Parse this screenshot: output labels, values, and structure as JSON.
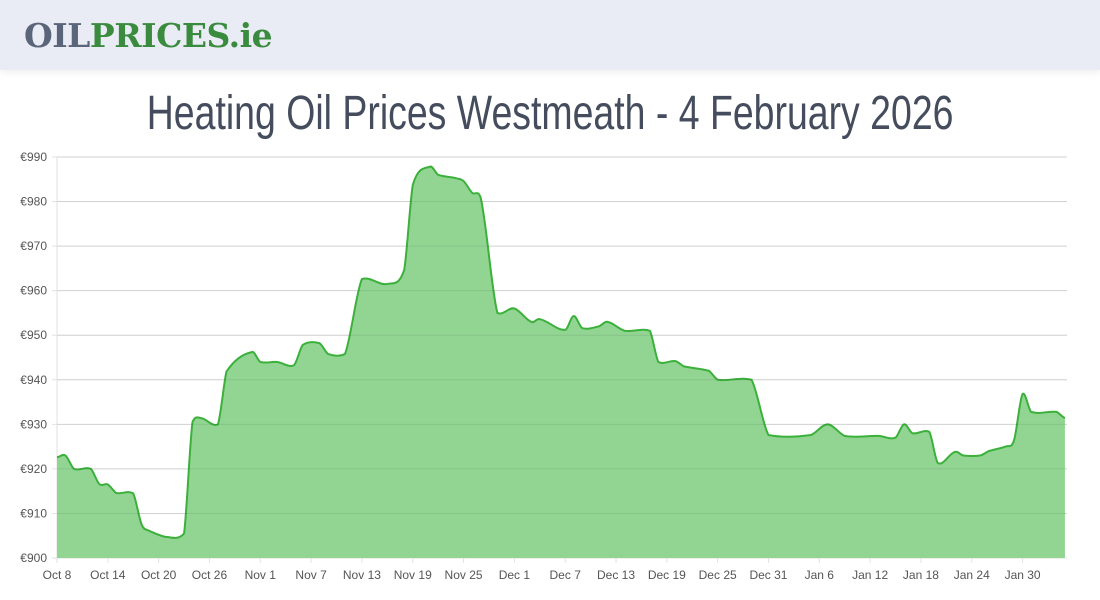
{
  "header": {
    "logo_part1": "OIL",
    "logo_part2": "PRICES.ie"
  },
  "page_title": "Heating Oil Prices Westmeath - 4 February 2026",
  "colors": {
    "line": "#3bb03b",
    "fill": "#92d593",
    "grid": "#e2e2e2",
    "logo_gray": "#5b6579",
    "logo_green": "#3b8b3f"
  },
  "chart_data": {
    "type": "area",
    "title": "",
    "xlabel": "",
    "ylabel": "",
    "ylim": [
      900,
      990
    ],
    "y_ticks": [
      "€900",
      "€910",
      "€920",
      "€930",
      "€940",
      "€950",
      "€960",
      "€970",
      "€980",
      "€990"
    ],
    "x_ticks": [
      "Oct 8",
      "Oct 14",
      "Oct 20",
      "Oct 26",
      "Nov 1",
      "Nov 7",
      "Nov 13",
      "Nov 19",
      "Nov 25",
      "Dec 1",
      "Dec 7",
      "Dec 13",
      "Dec 19",
      "Dec 25",
      "Dec 31",
      "Jan 6",
      "Jan 12",
      "Jan 18",
      "Jan 24",
      "Jan 30"
    ],
    "grid": true,
    "currency": "€",
    "points": [
      [
        "2025-10-08",
        922.6
      ],
      [
        "2025-10-09",
        923
      ],
      [
        "2025-10-10",
        920
      ],
      [
        "2025-10-12",
        920
      ],
      [
        "2025-10-13",
        916.6
      ],
      [
        "2025-10-14",
        916.5
      ],
      [
        "2025-10-15",
        914.6
      ],
      [
        "2025-10-17",
        914.5
      ],
      [
        "2025-10-18",
        907.5
      ],
      [
        "2025-10-19",
        906
      ],
      [
        "2025-10-21",
        904.7
      ],
      [
        "2025-10-23",
        905.5
      ],
      [
        "2025-10-24",
        930.5
      ],
      [
        "2025-10-25",
        931.4
      ],
      [
        "2025-10-27",
        930
      ],
      [
        "2025-10-28",
        941.8
      ],
      [
        "2025-10-31",
        946.2
      ],
      [
        "2025-11-01",
        944
      ],
      [
        "2025-11-03",
        944
      ],
      [
        "2025-11-05",
        943.3
      ],
      [
        "2025-11-06",
        947.8
      ],
      [
        "2025-11-08",
        948.2
      ],
      [
        "2025-11-09",
        945.8
      ],
      [
        "2025-11-11",
        945.8
      ],
      [
        "2025-11-13",
        962.6
      ],
      [
        "2025-11-16",
        961.5
      ],
      [
        "2025-11-18",
        964.7
      ],
      [
        "2025-11-19",
        983.7
      ],
      [
        "2025-11-21",
        987.8
      ],
      [
        "2025-11-22",
        986
      ],
      [
        "2025-11-24",
        985.3
      ],
      [
        "2025-11-25",
        984.6
      ],
      [
        "2025-11-26",
        982
      ],
      [
        "2025-11-27",
        981
      ],
      [
        "2025-11-29",
        955
      ],
      [
        "2025-12-01",
        956
      ],
      [
        "2025-12-03",
        953
      ],
      [
        "2025-12-04",
        953.6
      ],
      [
        "2025-12-07",
        951.2
      ],
      [
        "2025-12-08",
        954.3
      ],
      [
        "2025-12-09",
        951.6
      ],
      [
        "2025-12-11",
        952
      ],
      [
        "2025-12-12",
        953
      ],
      [
        "2025-12-14",
        951
      ],
      [
        "2025-12-17",
        951
      ],
      [
        "2025-12-18",
        944
      ],
      [
        "2025-12-20",
        944.2
      ],
      [
        "2025-12-21",
        943
      ],
      [
        "2025-12-24",
        942
      ],
      [
        "2025-12-25",
        940
      ],
      [
        "2025-12-29",
        940
      ],
      [
        "2025-12-31",
        927.6
      ],
      [
        "2026-01-05",
        927.6
      ],
      [
        "2026-01-07",
        930
      ],
      [
        "2026-01-09",
        927.4
      ],
      [
        "2026-01-13",
        927.4
      ],
      [
        "2026-01-15",
        927
      ],
      [
        "2026-01-16",
        930
      ],
      [
        "2026-01-17",
        928
      ],
      [
        "2026-01-19",
        928.3
      ],
      [
        "2026-01-20",
        921.3
      ],
      [
        "2026-01-22",
        923.8
      ],
      [
        "2026-01-23",
        923
      ],
      [
        "2026-01-25",
        923
      ],
      [
        "2026-01-26",
        924
      ],
      [
        "2026-01-28",
        925
      ],
      [
        "2026-01-29",
        926.5
      ],
      [
        "2026-01-30",
        936.8
      ],
      [
        "2026-01-31",
        932.8
      ],
      [
        "2026-02-03",
        932.8
      ],
      [
        "2026-02-04",
        931.4
      ]
    ]
  }
}
